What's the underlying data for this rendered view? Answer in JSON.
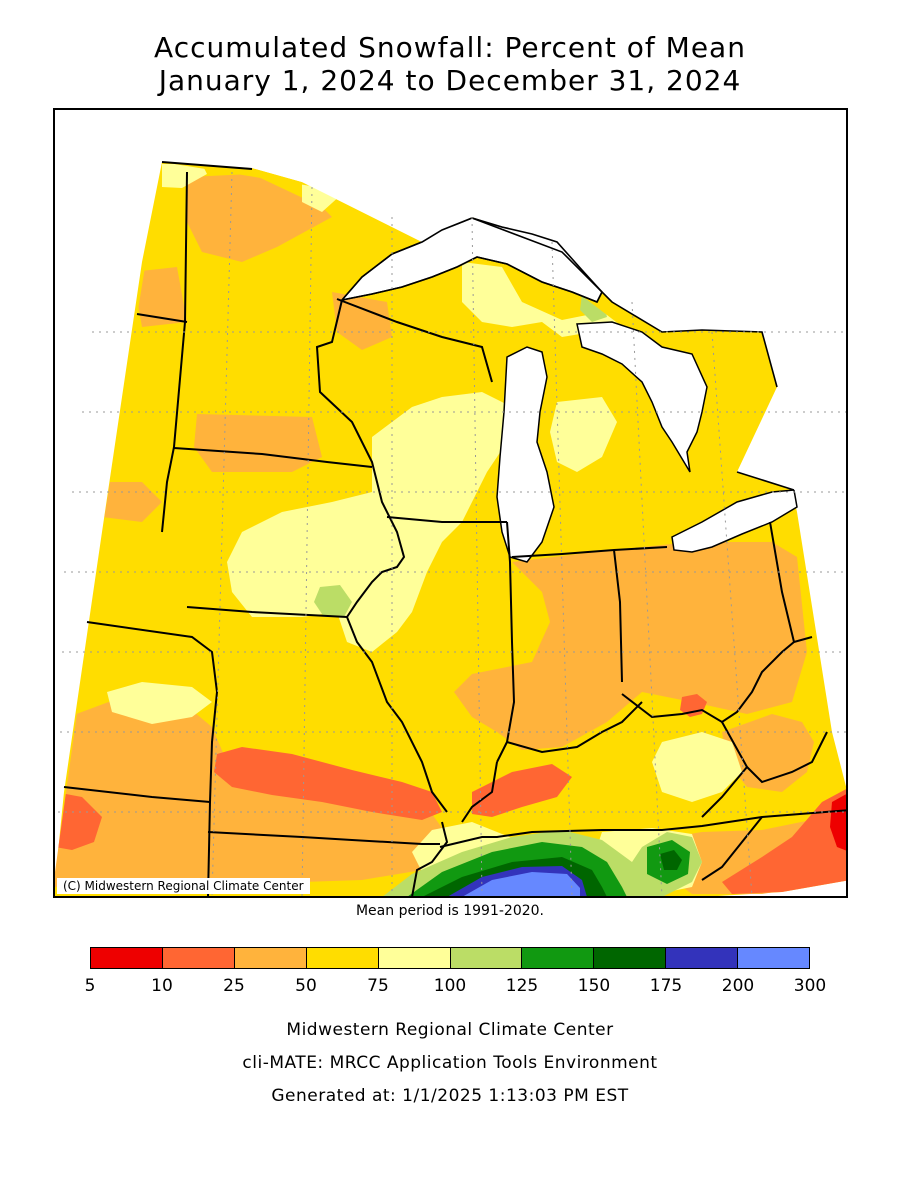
{
  "header": {
    "title_line1": "Accumulated Snowfall: Percent of Mean",
    "title_line2": "January 1, 2024 to December 31, 2024"
  },
  "map": {
    "copyright": "(C) Midwestern Regional Climate Center",
    "mean_period": "Mean period is 1991-2020.",
    "colors": {
      "water": "#ffffff",
      "base_50_75": "#ffdd00",
      "c_75_100": "#ffff99",
      "c_25_50": "#ffb33c",
      "c_10_25": "#ff6633",
      "c_5_10": "#ee0000",
      "c_100_125": "#bbdd66",
      "c_125_150": "#119911",
      "c_150_175": "#006600",
      "c_175_200": "#3333bb",
      "c_200_300": "#6688ff"
    }
  },
  "legend": {
    "colors": [
      "#ee0000",
      "#ff6633",
      "#ffb33c",
      "#ffdd00",
      "#ffff99",
      "#bbdd66",
      "#119911",
      "#006600",
      "#3333bb",
      "#6688ff"
    ],
    "ticks": [
      "5",
      "10",
      "25",
      "50",
      "75",
      "100",
      "125",
      "150",
      "175",
      "200",
      "300"
    ]
  },
  "footer": {
    "line1": "Midwestern Regional Climate Center",
    "line2": "cli-MATE: MRCC Application Tools Environment",
    "line3": "Generated at: 1/1/2025 1:13:03 PM EST"
  }
}
